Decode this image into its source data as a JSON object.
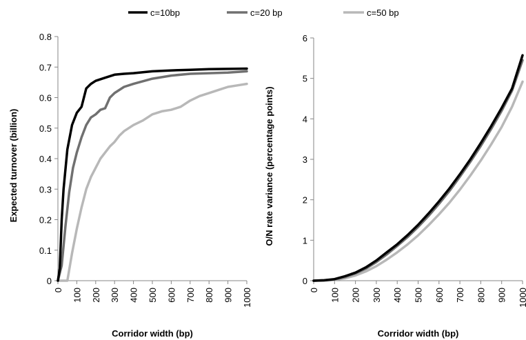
{
  "legend": {
    "placement": "top",
    "entries": [
      {
        "label": "c=10bp",
        "color": "#000000"
      },
      {
        "label": "c=20 bp",
        "color": "#707070"
      },
      {
        "label": "c=50 bp",
        "color": "#b8b8b8"
      }
    ]
  },
  "chart_data": [
    {
      "type": "line",
      "title": "",
      "xlabel": "Corridor width (bp)",
      "ylabel": "Expected turnover (billion)",
      "xlim": [
        0,
        1000
      ],
      "ylim": [
        0,
        0.8
      ],
      "xticks": [
        "0",
        "100",
        "200",
        "300",
        "400",
        "500",
        "600",
        "700",
        "800",
        "900",
        "1000"
      ],
      "yticks": [
        "0",
        "0.1",
        "0.2",
        "0.3",
        "0.4",
        "0.5",
        "0.6",
        "0.7",
        "0.8"
      ],
      "grid": false,
      "series": [
        {
          "name": "c=10bp",
          "color": "#000000",
          "x": [
            0,
            10,
            20,
            30,
            50,
            75,
            100,
            125,
            150,
            175,
            200,
            250,
            300,
            350,
            400,
            500,
            600,
            700,
            800,
            900,
            1000
          ],
          "y": [
            0,
            0.04,
            0.2,
            0.3,
            0.43,
            0.51,
            0.55,
            0.57,
            0.63,
            0.645,
            0.655,
            0.665,
            0.675,
            0.678,
            0.68,
            0.686,
            0.689,
            0.691,
            0.693,
            0.694,
            0.695
          ]
        },
        {
          "name": "c=20 bp",
          "color": "#707070",
          "x": [
            0,
            20,
            40,
            60,
            80,
            100,
            125,
            150,
            175,
            200,
            225,
            250,
            275,
            300,
            350,
            400,
            500,
            600,
            700,
            800,
            900,
            1000
          ],
          "y": [
            0,
            0.05,
            0.18,
            0.29,
            0.37,
            0.42,
            0.47,
            0.51,
            0.535,
            0.545,
            0.56,
            0.565,
            0.6,
            0.615,
            0.635,
            0.645,
            0.662,
            0.672,
            0.678,
            0.68,
            0.682,
            0.686
          ]
        },
        {
          "name": "c=50 bp",
          "color": "#b8b8b8",
          "x": [
            0,
            50,
            75,
            100,
            125,
            150,
            175,
            200,
            225,
            250,
            275,
            300,
            325,
            350,
            400,
            450,
            500,
            550,
            600,
            650,
            700,
            750,
            800,
            850,
            900,
            950,
            1000
          ],
          "y": [
            0,
            0,
            0.09,
            0.17,
            0.24,
            0.3,
            0.34,
            0.37,
            0.4,
            0.42,
            0.44,
            0.455,
            0.475,
            0.49,
            0.51,
            0.525,
            0.545,
            0.555,
            0.56,
            0.57,
            0.59,
            0.605,
            0.615,
            0.625,
            0.635,
            0.64,
            0.645
          ]
        }
      ]
    },
    {
      "type": "line",
      "title": "",
      "xlabel": "Corridor width (bp)",
      "ylabel": "O/N rate variance (percentage points)",
      "xlim": [
        0,
        1000
      ],
      "ylim": [
        0,
        6
      ],
      "xticks": [
        "0",
        "100",
        "200",
        "300",
        "400",
        "500",
        "600",
        "700",
        "800",
        "900",
        "1000"
      ],
      "yticks": [
        "0",
        "1",
        "2",
        "3",
        "4",
        "5",
        "6"
      ],
      "grid": false,
      "series": [
        {
          "name": "c=10bp",
          "color": "#000000",
          "x": [
            0,
            50,
            100,
            150,
            200,
            250,
            300,
            350,
            400,
            450,
            500,
            550,
            600,
            650,
            700,
            750,
            800,
            850,
            900,
            950,
            1000
          ],
          "y": [
            0,
            0.01,
            0.04,
            0.11,
            0.2,
            0.33,
            0.5,
            0.7,
            0.9,
            1.13,
            1.38,
            1.66,
            1.96,
            2.28,
            2.63,
            3.0,
            3.4,
            3.82,
            4.27,
            4.75,
            5.57
          ]
        },
        {
          "name": "c=20 bp",
          "color": "#707070",
          "x": [
            0,
            50,
            100,
            150,
            200,
            250,
            300,
            350,
            400,
            450,
            500,
            550,
            600,
            650,
            700,
            750,
            800,
            850,
            900,
            950,
            1000
          ],
          "y": [
            0,
            0.01,
            0.03,
            0.09,
            0.18,
            0.3,
            0.46,
            0.65,
            0.86,
            1.08,
            1.33,
            1.6,
            1.9,
            2.22,
            2.57,
            2.94,
            3.33,
            3.75,
            4.2,
            4.7,
            5.45
          ]
        },
        {
          "name": "c=50 bp",
          "color": "#b8b8b8",
          "x": [
            0,
            50,
            100,
            150,
            200,
            250,
            300,
            350,
            400,
            450,
            500,
            550,
            600,
            650,
            700,
            750,
            800,
            850,
            900,
            950,
            1000
          ],
          "y": [
            0,
            0,
            0.02,
            0.06,
            0.13,
            0.23,
            0.36,
            0.52,
            0.7,
            0.9,
            1.12,
            1.37,
            1.64,
            1.93,
            2.25,
            2.6,
            2.97,
            3.37,
            3.8,
            4.3,
            4.92
          ]
        }
      ]
    }
  ]
}
